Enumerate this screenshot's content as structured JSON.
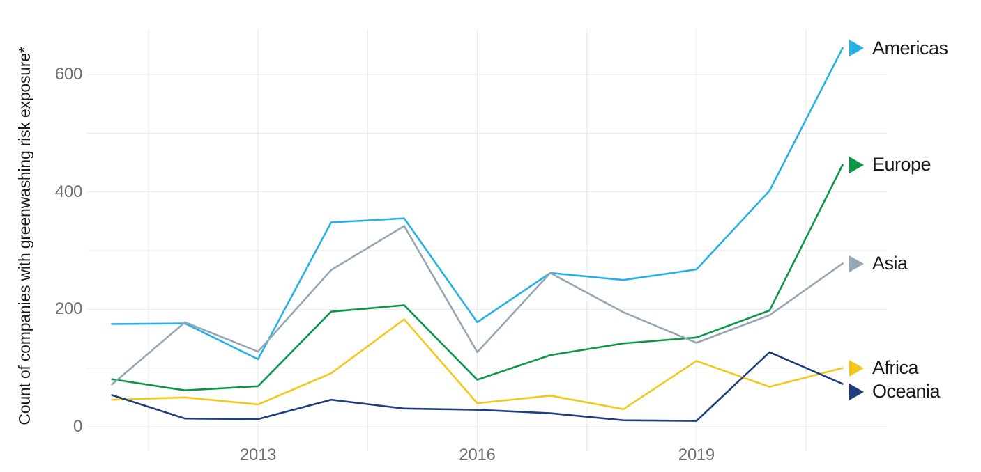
{
  "chart_data": {
    "type": "line",
    "title": "",
    "xlabel": "",
    "ylabel": "Count of companies with greenwashing risk exposure*",
    "x": [
      2011,
      2012,
      2013,
      2014,
      2015,
      2016,
      2017,
      2018,
      2019,
      2020,
      2021
    ],
    "x_ticks": [
      {
        "value": 2013,
        "label": "2013"
      },
      {
        "value": 2016,
        "label": "2016"
      },
      {
        "value": 2019,
        "label": "2019"
      }
    ],
    "y_ticks": [
      {
        "value": 0,
        "label": "0"
      },
      {
        "value": 200,
        "label": "200"
      },
      {
        "value": 400,
        "label": "400"
      },
      {
        "value": 600,
        "label": "600"
      }
    ],
    "ylim": [
      0,
      660
    ],
    "grid": {
      "show": true,
      "horizontal_step": 100,
      "vertical_step_years": 1.5,
      "color": "#e9e9e9"
    },
    "legend_position": "right",
    "series": [
      {
        "name": "Americas",
        "color": "#25B1E6",
        "values": [
          175,
          176,
          115,
          348,
          355,
          178,
          262,
          250,
          268,
          402,
          645
        ]
      },
      {
        "name": "Europe",
        "color": "#0C9648",
        "values": [
          81,
          62,
          69,
          196,
          207,
          80,
          122,
          142,
          152,
          198,
          446
        ]
      },
      {
        "name": "Asia",
        "color": "#95A7B4",
        "values": [
          72,
          178,
          128,
          267,
          342,
          127,
          262,
          195,
          143,
          190,
          278
        ]
      },
      {
        "name": "Africa",
        "color": "#F3C71B",
        "values": [
          46,
          50,
          38,
          91,
          183,
          40,
          53,
          30,
          112,
          68,
          100
        ]
      },
      {
        "name": "Oceania",
        "color": "#1D3F7F",
        "values": [
          54,
          14,
          13,
          46,
          31,
          29,
          23,
          11,
          10,
          127,
          73
        ]
      }
    ]
  }
}
